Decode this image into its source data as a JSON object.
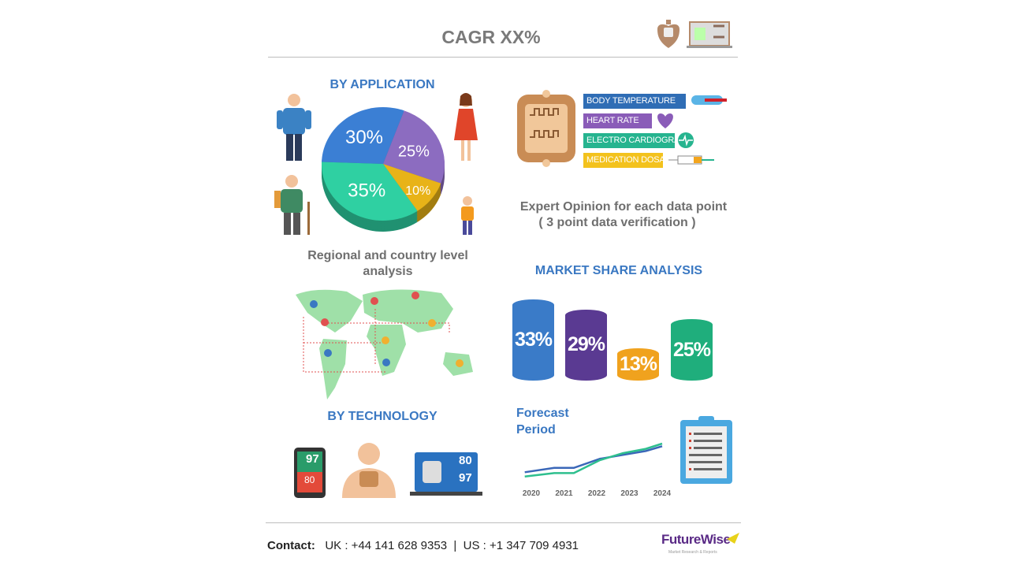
{
  "header": {
    "title": "CAGR XX%"
  },
  "by_application": {
    "title": "BY APPLICATION",
    "chart_data": {
      "type": "pie",
      "slices": [
        {
          "label": "30%",
          "value": 30,
          "color": "#3b7fd4"
        },
        {
          "label": "25%",
          "value": 25,
          "color": "#8c6cc0"
        },
        {
          "label": "10%",
          "value": 10,
          "color": "#e8b318"
        },
        {
          "label": "35%",
          "value": 35,
          "color": "#2fd0a2"
        }
      ]
    }
  },
  "parameters": {
    "items": [
      {
        "label": "BODY TEMPERATURE",
        "color": "#2f6db5"
      },
      {
        "label": "HEART RATE",
        "color": "#8a5cb8"
      },
      {
        "label": "ELECTRO CARDIOGRAM",
        "color": "#26b48f"
      },
      {
        "label": "MEDICATION DOSAGE",
        "color": "#f3c21d"
      }
    ]
  },
  "expert": {
    "line1": "Expert Opinion for each data point",
    "line2": "( 3 point data verification )"
  },
  "regional": {
    "line1": "Regional and country level",
    "line2": "analysis"
  },
  "market_share": {
    "title": "MARKET SHARE ANALYSIS",
    "chart_data": {
      "type": "bar",
      "values": [
        33,
        29,
        13,
        25
      ],
      "labels": [
        "33%",
        "29%",
        "13%",
        "25%"
      ],
      "colors": [
        "#3a7bc8",
        "#5a3a92",
        "#f0a21e",
        "#1fae7c"
      ]
    }
  },
  "by_technology": {
    "title": "BY TECHNOLOGY",
    "phone_top": "97",
    "phone_bottom": "80",
    "monitor_top": "80",
    "monitor_bottom": "97"
  },
  "forecast": {
    "title_line1": "Forecast",
    "title_line2": "Period",
    "chart_data": {
      "type": "line",
      "x_ticks": [
        "2020",
        "2021",
        "2022",
        "2023",
        "2024"
      ],
      "series": [
        {
          "color": "#3a67b8",
          "x": [
            2019.8,
            2020.7,
            2021.3,
            2022.1,
            2022.8,
            2023.5,
            2024.0
          ],
          "y": [
            14,
            24,
            24,
            45,
            54,
            63,
            74
          ]
        },
        {
          "color": "#2ebf8e",
          "x": [
            2019.8,
            2020.7,
            2021.3,
            2022.1,
            2022.8,
            2023.5,
            2024.0
          ],
          "y": [
            4,
            12,
            12,
            42,
            58,
            68,
            80
          ]
        }
      ]
    }
  },
  "footer": {
    "contact_label": "Contact:",
    "uk": "UK : +44 141 628 9353",
    "sep": "|",
    "us": "US : +1 347 709 4931",
    "brand": "FutureWise",
    "brand_tagline": "Market Research & Reports"
  }
}
